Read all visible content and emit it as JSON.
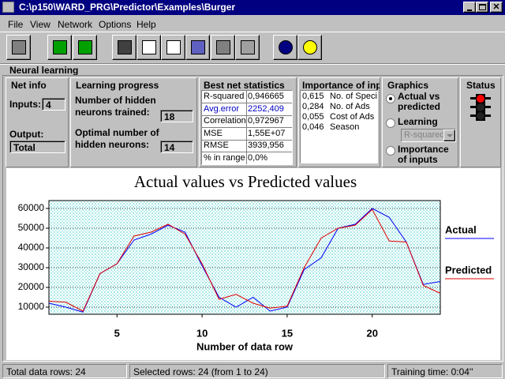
{
  "window": {
    "title": "C:\\p150\\WARD_PRG\\Predictor\\Examples\\Burger"
  },
  "menu": [
    "File",
    "View",
    "Network",
    "Options",
    "Help"
  ],
  "section_label": "Neural learning",
  "net_info": {
    "title": "Net info",
    "inputs_label": "Inputs:",
    "inputs": "4",
    "output_label": "Output:",
    "output": "Total"
  },
  "learning_progress": {
    "title": "Learning progress",
    "trained_label": "Number of hidden neurons trained:",
    "trained": "18",
    "optimal_label": "Optimal number of hidden neurons:",
    "optimal": "14"
  },
  "best_net_statistics": {
    "title": "Best net statistics",
    "rows": [
      [
        "R-squared",
        "0,946665"
      ],
      [
        "Avg.error",
        "2252,409"
      ],
      [
        "Correlation",
        "0,972967"
      ],
      [
        "MSE",
        "1,55E+07"
      ],
      [
        "RMSE",
        "3939,956"
      ],
      [
        "% in range",
        "0,0%"
      ]
    ]
  },
  "importance": {
    "title": "Importance of inp",
    "rows": [
      [
        "0,615",
        "No. of Speci"
      ],
      [
        "0,284",
        "No. of Ads"
      ],
      [
        "0,055",
        "Cost of Ads"
      ],
      [
        "0,046",
        "Season"
      ]
    ]
  },
  "graphics": {
    "title": "Graphics",
    "options": [
      "Actual vs predicted",
      "Learning",
      "Importance of inputs"
    ],
    "dropdown": "R-squared"
  },
  "status": {
    "title": "Status"
  },
  "status_bar": [
    "Total data rows: 24",
    "Selected rows: 24  (from 1 to 24)",
    "Training time: 0:04''"
  ],
  "chart_data": {
    "type": "line",
    "title": "Actual values vs Predicted values",
    "x_label": "Number of data row",
    "x": [
      1,
      2,
      3,
      4,
      5,
      6,
      7,
      8,
      9,
      10,
      11,
      12,
      13,
      14,
      15,
      16,
      17,
      18,
      19,
      20,
      21,
      22,
      23,
      24
    ],
    "series": [
      {
        "name": "Actual",
        "color": "#0000ff",
        "values": [
          12000,
          10000,
          7500,
          27000,
          32000,
          44000,
          47000,
          51500,
          48000,
          31000,
          15000,
          10000,
          15000,
          8000,
          10000,
          29000,
          35000,
          50000,
          52000,
          60000,
          55500,
          43000,
          21500,
          23000
        ]
      },
      {
        "name": "Predicted",
        "color": "#e00000",
        "values": [
          13000,
          12500,
          8000,
          27000,
          32000,
          46000,
          48000,
          52000,
          47000,
          32000,
          14000,
          16500,
          12000,
          9500,
          10500,
          30000,
          45000,
          50000,
          51500,
          59500,
          43500,
          43000,
          21000,
          17000
        ]
      }
    ],
    "xlim": [
      1,
      24
    ],
    "ylim": [
      6400,
      64000
    ],
    "xticks": [
      5,
      10,
      15,
      20
    ],
    "yticks": [
      10000,
      20000,
      30000,
      40000,
      50000,
      60000
    ],
    "grid": true,
    "legend": "right"
  }
}
